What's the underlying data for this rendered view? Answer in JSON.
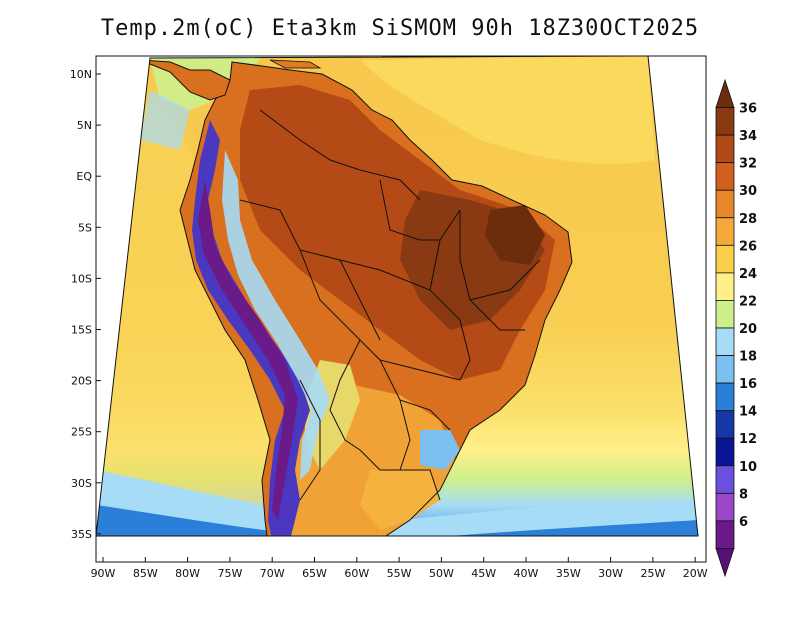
{
  "title": "Temp.2m(oC) Eta3km SiSMOM 90h 18Z30OCT2025",
  "latitude_labels": [
    "10N",
    "5N",
    "EQ",
    "5S",
    "10S",
    "15S",
    "20S",
    "25S",
    "30S",
    "35S"
  ],
  "longitude_labels": [
    "90W",
    "85W",
    "80W",
    "75W",
    "70W",
    "65W",
    "60W",
    "55W",
    "50W",
    "45W",
    "40W",
    "35W",
    "30W",
    "25W",
    "20W"
  ],
  "colorbar": {
    "unit": "oC",
    "labels": [
      "36",
      "34",
      "32",
      "30",
      "28",
      "26",
      "24",
      "22",
      "20",
      "18",
      "16",
      "14",
      "12",
      "10",
      "8",
      "6"
    ],
    "colors": [
      "#6b2d0c",
      "#8a3a12",
      "#b04a16",
      "#d35f1c",
      "#e8862a",
      "#f5a93a",
      "#fbcf4a",
      "#fff08a",
      "#cdf08c",
      "#a6dcf5",
      "#7cc0f0",
      "#2b7fd8",
      "#1438a8",
      "#0a1696",
      "#6a4fe0",
      "#9b45c8",
      "#6b1a8a",
      "#5a0f78"
    ]
  },
  "map_colors": {
    "ocean_warm": "#f6c24a",
    "ocean_mid": "#fbd95c",
    "ocean_cool": "#fff08a",
    "ocean_cold": "#cdf08c",
    "ocean_colder": "#a6dcf5",
    "ocean_coldest": "#2b7fd8",
    "land_hot": "#c4521a",
    "land_hottest": "#7a3010",
    "land_warm": "#e07a24",
    "andes": "#4a38c0"
  }
}
